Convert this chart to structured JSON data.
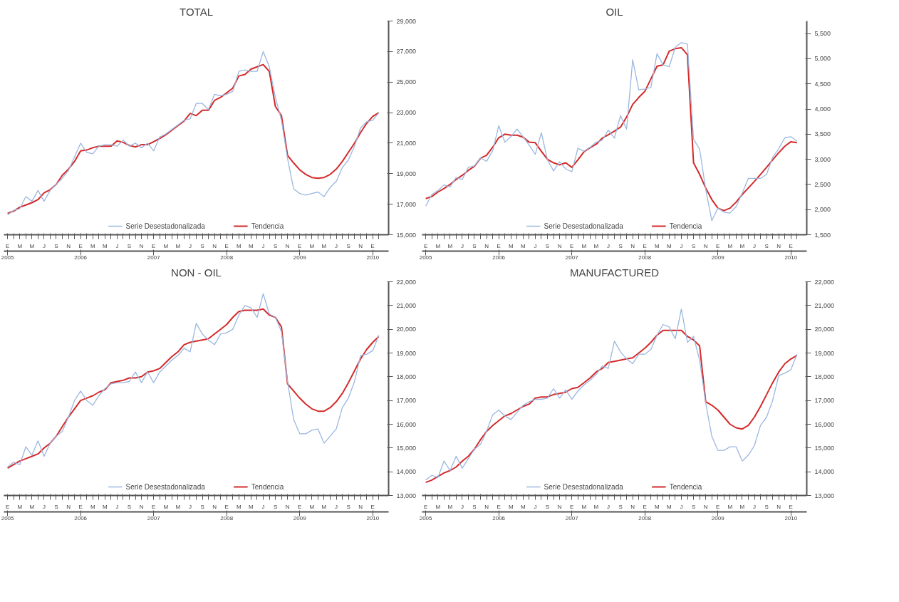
{
  "chart_data": [
    {
      "type": "line",
      "title": "TOTAL",
      "legend": "bottom",
      "grid": false,
      "categories": [
        "E\n2005",
        null,
        "M",
        null,
        "M",
        null,
        "J",
        null,
        "S",
        null,
        "N",
        null,
        "E\n2006",
        null,
        "M",
        null,
        "M",
        null,
        "J",
        null,
        "S",
        null,
        "N",
        null,
        "E\n2007",
        null,
        "M",
        null,
        "M",
        null,
        "J",
        null,
        "S",
        null,
        "N",
        null,
        "E\n2008",
        null,
        "M",
        null,
        "M",
        null,
        "J",
        null,
        "S",
        null,
        "N",
        null,
        "E\n2009",
        null,
        "M",
        null,
        "M",
        null,
        "J",
        null,
        "S",
        null,
        "N",
        null,
        "E\n2010",
        null
      ],
      "ylim": [
        15000,
        29000
      ],
      "yticks": [
        {
          "value": 15000,
          "label": "15,000"
        },
        {
          "value": 17000,
          "label": "17,000"
        },
        {
          "value": 19000,
          "label": "19,000"
        },
        {
          "value": 21000,
          "label": "21,000"
        },
        {
          "value": 23000,
          "label": "23,000"
        },
        {
          "value": 25000,
          "label": "25,000"
        },
        {
          "value": 27000,
          "label": "27,000"
        },
        {
          "value": 29000,
          "label": "29,000"
        }
      ],
      "series": [
        {
          "name": "Serie Desestadonalizada",
          "color": "#9bb7e0",
          "values": [
            16300,
            16600,
            16700,
            17500,
            17200,
            17900,
            17200,
            17900,
            18300,
            18700,
            19200,
            20100,
            21000,
            20400,
            20300,
            20800,
            20900,
            20900,
            20800,
            21200,
            20800,
            21000,
            20700,
            21000,
            20500,
            21400,
            21600,
            21900,
            22200,
            22500,
            22600,
            23600,
            23600,
            23200,
            24200,
            24100,
            24200,
            24400,
            25700,
            25800,
            25700,
            25700,
            27000,
            26000,
            24000,
            22500,
            20000,
            18000,
            17700,
            17600,
            17700,
            17800,
            17500,
            18100,
            18500,
            19400,
            19900,
            20800,
            22000,
            22400,
            22500,
            23000
          ]
        },
        {
          "name": "Tendencia",
          "color": "#d42a2a",
          "values": [
            16400,
            16550,
            16800,
            16950,
            17100,
            17300,
            17750,
            17950,
            18300,
            18900,
            19300,
            19800,
            20500,
            20550,
            20700,
            20800,
            20800,
            20800,
            21150,
            21050,
            20850,
            20750,
            20900,
            20900,
            21100,
            21300,
            21550,
            21850,
            22150,
            22450,
            22950,
            22800,
            23150,
            23150,
            23800,
            24000,
            24300,
            24600,
            25400,
            25500,
            25850,
            26000,
            26150,
            25700,
            23400,
            22800,
            20200,
            19700,
            19250,
            18950,
            18750,
            18700,
            18750,
            18950,
            19300,
            19800,
            20400,
            21000,
            21700,
            22300,
            22750,
            23000
          ]
        }
      ]
    },
    {
      "type": "line",
      "title": "OIL",
      "legend": "bottom",
      "grid": false,
      "categories": [
        "E\n2005",
        null,
        "M",
        null,
        "M",
        null,
        "J",
        null,
        "S",
        null,
        "N",
        null,
        "E\n2006",
        null,
        "M",
        null,
        "M",
        null,
        "J",
        null,
        "S",
        null,
        "N",
        null,
        "E\n2007",
        null,
        "M",
        null,
        "M",
        null,
        "J",
        null,
        "S",
        null,
        "N",
        null,
        "E\n2008",
        null,
        "M",
        null,
        "M",
        null,
        "J",
        null,
        "S",
        null,
        "N",
        null,
        "E\n2009",
        null,
        "M",
        null,
        "M",
        null,
        "J",
        null,
        "S",
        null,
        "N",
        null,
        "E\n2010",
        null
      ],
      "ylim": [
        1500,
        5750
      ],
      "yticks": [
        {
          "value": 1500,
          "label": "1,500"
        },
        {
          "value": 2000,
          "label": "2,000"
        },
        {
          "value": 2500,
          "label": "2,500"
        },
        {
          "value": 3000,
          "label": "3,000"
        },
        {
          "value": 3500,
          "label": "3,500"
        },
        {
          "value": 4000,
          "label": "4,000"
        },
        {
          "value": 4500,
          "label": "4,500"
        },
        {
          "value": 5000,
          "label": "5,000"
        },
        {
          "value": 5500,
          "label": "5,500"
        }
      ],
      "series": [
        {
          "name": "Serie Desestadonalizada",
          "color": "#9bb7e0",
          "values": [
            2070,
            2300,
            2380,
            2490,
            2450,
            2640,
            2600,
            2840,
            2870,
            3030,
            2960,
            3170,
            3670,
            3340,
            3450,
            3600,
            3450,
            3280,
            3100,
            3530,
            2990,
            2770,
            2950,
            2810,
            2750,
            3220,
            3160,
            3240,
            3340,
            3380,
            3580,
            3420,
            3870,
            3600,
            4980,
            4380,
            4400,
            4430,
            5100,
            4880,
            4840,
            5230,
            5320,
            5290,
            3400,
            3200,
            2400,
            1780,
            2030,
            1950,
            1930,
            2060,
            2330,
            2620,
            2620,
            2620,
            2700,
            3040,
            3210,
            3430,
            3450,
            3360
          ]
        },
        {
          "name": "Tendencia",
          "color": "#d42a2a",
          "values": [
            2220,
            2260,
            2350,
            2420,
            2500,
            2600,
            2680,
            2780,
            2860,
            3020,
            3080,
            3240,
            3430,
            3500,
            3480,
            3480,
            3440,
            3340,
            3330,
            3160,
            3000,
            2930,
            2890,
            2930,
            2840,
            2990,
            3150,
            3230,
            3300,
            3420,
            3490,
            3560,
            3640,
            3840,
            4090,
            4230,
            4350,
            4600,
            4850,
            4880,
            5150,
            5200,
            5220,
            5080,
            2930,
            2700,
            2430,
            2200,
            2030,
            1980,
            2030,
            2150,
            2300,
            2430,
            2560,
            2700,
            2840,
            2990,
            3130,
            3260,
            3350,
            3330
          ]
        }
      ]
    },
    {
      "type": "line",
      "title": "NON - OIL",
      "legend": "bottom",
      "grid": false,
      "categories": [
        "E\n2005",
        null,
        "M",
        null,
        "M",
        null,
        "J",
        null,
        "S",
        null,
        "N",
        null,
        "E\n2006",
        null,
        "M",
        null,
        "M",
        null,
        "J",
        null,
        "S",
        null,
        "N",
        null,
        "E\n2007",
        null,
        "M",
        null,
        "M",
        null,
        "J",
        null,
        "S",
        null,
        "N",
        null,
        "E\n2008",
        null,
        "M",
        null,
        "M",
        null,
        "J",
        null,
        "S",
        null,
        "N",
        null,
        "E\n2009",
        null,
        "M",
        null,
        "M",
        null,
        "J",
        null,
        "S",
        null,
        "N",
        null,
        "E\n2010",
        null
      ],
      "ylim": [
        13000,
        22000
      ],
      "yticks": [
        {
          "value": 13000,
          "label": "13,000"
        },
        {
          "value": 14000,
          "label": "14,000"
        },
        {
          "value": 15000,
          "label": "15,000"
        },
        {
          "value": 16000,
          "label": "16,000"
        },
        {
          "value": 17000,
          "label": "17,000"
        },
        {
          "value": 18000,
          "label": "18,000"
        },
        {
          "value": 19000,
          "label": "19,000"
        },
        {
          "value": 20000,
          "label": "20,000"
        },
        {
          "value": 21000,
          "label": "21,000"
        },
        {
          "value": 22000,
          "label": "22,000"
        }
      ],
      "series": [
        {
          "name": "Serie Desestadonalizada",
          "color": "#9bb7e0",
          "values": [
            14200,
            14400,
            14300,
            15050,
            14700,
            15300,
            14650,
            15200,
            15500,
            15700,
            16300,
            17000,
            17400,
            17000,
            16800,
            17200,
            17500,
            17700,
            17750,
            17750,
            17800,
            18200,
            17750,
            18200,
            17750,
            18200,
            18450,
            18700,
            18900,
            19200,
            19050,
            20250,
            19800,
            19550,
            19350,
            19800,
            19850,
            20000,
            20600,
            21000,
            20900,
            20500,
            21500,
            20650,
            20500,
            19900,
            17800,
            16200,
            15600,
            15600,
            15750,
            15800,
            15200,
            15500,
            15800,
            16700,
            17100,
            17800,
            18900,
            18950,
            19100,
            19750
          ]
        },
        {
          "name": "Tendencia",
          "color": "#d42a2a",
          "values": [
            14150,
            14300,
            14450,
            14550,
            14650,
            14750,
            15000,
            15200,
            15500,
            15900,
            16300,
            16650,
            17000,
            17100,
            17200,
            17350,
            17450,
            17750,
            17800,
            17850,
            17950,
            17950,
            18000,
            18200,
            18250,
            18350,
            18600,
            18850,
            19050,
            19350,
            19450,
            19500,
            19550,
            19600,
            19800,
            20000,
            20200,
            20500,
            20750,
            20800,
            20800,
            20800,
            20850,
            20600,
            20500,
            20100,
            17700,
            17400,
            17100,
            16850,
            16650,
            16550,
            16550,
            16700,
            16950,
            17300,
            17750,
            18250,
            18750,
            19150,
            19450,
            19700
          ]
        }
      ]
    },
    {
      "type": "line",
      "title": "MANUFACTURED",
      "legend": "bottom",
      "grid": false,
      "categories": [
        "E\n2005",
        null,
        "M",
        null,
        "M",
        null,
        "J",
        null,
        "S",
        null,
        "N",
        null,
        "E\n2006",
        null,
        "M",
        null,
        "M",
        null,
        "J",
        null,
        "S",
        null,
        "N",
        null,
        "E\n2007",
        null,
        "M",
        null,
        "M",
        null,
        "J",
        null,
        "S",
        null,
        "N",
        null,
        "E\n2008",
        null,
        "M",
        null,
        "M",
        null,
        "J",
        null,
        "S",
        null,
        "N",
        null,
        "E\n2009",
        null,
        "M",
        null,
        "M",
        null,
        "J",
        null,
        "S",
        null,
        "N",
        null,
        "E\n2010",
        null
      ],
      "ylim": [
        13000,
        22000
      ],
      "yticks": [
        {
          "value": 13000,
          "label": "13,000"
        },
        {
          "value": 14000,
          "label": "14,000"
        },
        {
          "value": 15000,
          "label": "15,000"
        },
        {
          "value": 16000,
          "label": "16,000"
        },
        {
          "value": 17000,
          "label": "17,000"
        },
        {
          "value": 18000,
          "label": "18,000"
        },
        {
          "value": 19000,
          "label": "19,000"
        },
        {
          "value": 20000,
          "label": "20,000"
        },
        {
          "value": 21000,
          "label": "21,000"
        },
        {
          "value": 22000,
          "label": "22,000"
        }
      ],
      "series": [
        {
          "name": "Serie Desestadonalizada",
          "color": "#9bb7e0",
          "values": [
            13650,
            13850,
            13750,
            14450,
            14050,
            14650,
            14150,
            14550,
            14950,
            15150,
            15700,
            16400,
            16600,
            16350,
            16200,
            16500,
            16800,
            16950,
            17050,
            17050,
            17100,
            17500,
            17100,
            17450,
            17050,
            17400,
            17650,
            17850,
            18100,
            18450,
            18350,
            19500,
            19050,
            18750,
            18550,
            18950,
            18950,
            19150,
            19750,
            20200,
            20100,
            19600,
            20850,
            19450,
            19700,
            18700,
            16900,
            15500,
            14900,
            14900,
            15050,
            15050,
            14450,
            14700,
            15100,
            15950,
            16300,
            17000,
            18050,
            18150,
            18300,
            18950
          ]
        },
        {
          "name": "Tendencia",
          "color": "#d42a2a",
          "values": [
            13550,
            13650,
            13800,
            13950,
            14050,
            14200,
            14450,
            14650,
            14950,
            15350,
            15700,
            15950,
            16150,
            16350,
            16450,
            16600,
            16750,
            16850,
            17100,
            17150,
            17150,
            17250,
            17300,
            17350,
            17500,
            17550,
            17750,
            17950,
            18200,
            18350,
            18600,
            18650,
            18700,
            18750,
            18800,
            19000,
            19200,
            19450,
            19750,
            19950,
            19950,
            19950,
            19950,
            19700,
            19550,
            19300,
            16950,
            16800,
            16600,
            16300,
            16000,
            15850,
            15800,
            15950,
            16300,
            16750,
            17250,
            17750,
            18200,
            18550,
            18750,
            18900
          ]
        }
      ]
    }
  ]
}
